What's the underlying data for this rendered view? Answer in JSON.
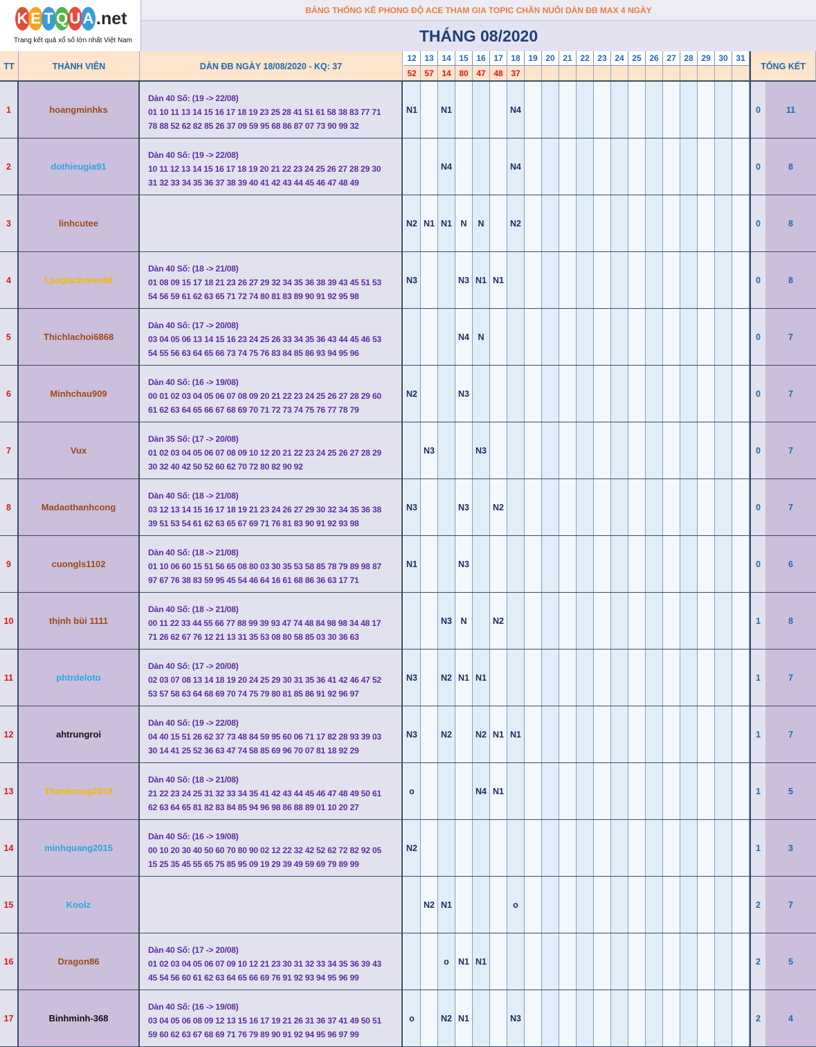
{
  "logo": {
    "letters": [
      "K",
      "E",
      "T",
      "Q",
      "U",
      "A"
    ],
    "suffix": ".net",
    "tagline": "Trang kết quả xổ số lớn nhất Việt Nam",
    "colors": [
      "#e84a3c",
      "#f7a21b",
      "#3b9ad9",
      "#4fb748",
      "#e84a3c",
      "#3b9ad9"
    ]
  },
  "title": "BẢNG THỐNG KÊ PHONG ĐỘ ACE THAM GIA TOPIC CHĂN NUÔI DÀN ĐB MAX 4 NGÀY",
  "month": "THÁNG 08/2020",
  "headers": {
    "tt": "TT",
    "member": "THÀNH VIÊN",
    "dan": "DÀN ĐB NGÀY 18/08/2020 - KQ: 37",
    "total": "TỔNG KẾT"
  },
  "days": [
    "12",
    "13",
    "14",
    "15",
    "16",
    "17",
    "18",
    "19",
    "20",
    "21",
    "22",
    "23",
    "24",
    "25",
    "26",
    "27",
    "28",
    "29",
    "30",
    "31"
  ],
  "results": [
    "52",
    "57",
    "14",
    "80",
    "47",
    "48",
    "37",
    "",
    "",
    "",
    "",
    "",
    "",
    "",
    "",
    "",
    "",
    "",
    "",
    ""
  ],
  "rows": [
    {
      "tt": "1",
      "name": "hoangminhks",
      "color": "#9c4a1a",
      "title": "Dàn 40 Số: (19 -> 22/08)",
      "line1": "01 10 11 13 14 15 16 17 18 19 23 25 28 41 51 61 58 38 83 77 71",
      "line2": "78 88 52 62 82 85 26 37 09 59 95 68 86 87 07 73 90 99 32",
      "marks": [
        "N1",
        "",
        "N1",
        "",
        "",
        "",
        "N4"
      ],
      "lose": "0",
      "total": "11"
    },
    {
      "tt": "2",
      "name": "dothieugia91",
      "color": "#2ea6e0",
      "title": "Dàn 40 Số: (19 -> 22/08)",
      "line1": "10 11 12 13 14 15 16 17 18 19 20 21 22 23 24 25 26 27 28 29 30",
      "line2": "31 32 33 34 35 36 37 38 39 40 41 42 43 44 45 46 47 48 49",
      "marks": [
        "",
        "",
        "N4",
        "",
        "",
        "",
        "N4"
      ],
      "lose": "0",
      "total": "8"
    },
    {
      "tt": "3",
      "name": "linhcutee",
      "color": "#9c4a1a",
      "title": "",
      "line1": "",
      "line2": "",
      "marks": [
        "N2",
        "N1",
        "N1",
        "N",
        "N",
        "",
        "N2"
      ],
      "lose": "0",
      "total": "8"
    },
    {
      "tt": "4",
      "name": "Laogiachoiso68",
      "color": "#f5b800",
      "title": "Dàn 40 Số: (18 -> 21/08)",
      "line1": "01 08 09 15 17 18 21 23 26 27 29 32 34 35 36 38 39 43 45 51 53",
      "line2": "54 56 59 61 62 63 65 71 72 74 80 81 83 89 90 91 92 95 98",
      "marks": [
        "N3",
        "",
        "",
        "N3",
        "N1",
        "N1",
        ""
      ],
      "lose": "0",
      "total": "8"
    },
    {
      "tt": "5",
      "name": "Thichlachoi6868",
      "color": "#9c4a1a",
      "title": "Dàn 40 Số: (17 -> 20/08)",
      "line1": "03 04 05 06 13 14 15 16 23 24 25 26 33 34 35 36 43 44 45 46 53",
      "line2": "54 55 56 63 64 65 66 73 74 75 76 83 84 85 86 93 94 95 96",
      "marks": [
        "",
        "",
        "",
        "N4",
        "N",
        "",
        ""
      ],
      "lose": "0",
      "total": "7"
    },
    {
      "tt": "6",
      "name": "Minhchau909",
      "color": "#9c4a1a",
      "title": "Dàn 40 Số: (16 -> 19/08)",
      "line1": "00 01 02 03 04 05 06 07 08 09 20 21 22 23 24 25 26 27 28 29 60",
      "line2": "61 62 63 64 65 66 67 68 69 70 71 72 73 74 75 76 77 78 79",
      "marks": [
        "N2",
        "",
        "",
        "N3",
        "",
        "",
        ""
      ],
      "lose": "0",
      "total": "7"
    },
    {
      "tt": "7",
      "name": "Vux",
      "color": "#9c4a1a",
      "title": "Dàn 35 Số: (17 -> 20/08)",
      "line1": "01 02 03 04 05 06 07 08 09 10 12 20 21 22 23 24 25 26 27 28 29",
      "line2": "30 32 40 42 50 52 60 62 70 72 80 82 90 92",
      "marks": [
        "",
        "N3",
        "",
        "",
        "N3",
        "",
        ""
      ],
      "lose": "0",
      "total": "7"
    },
    {
      "tt": "8",
      "name": "Madaothanhcong",
      "color": "#9c4a1a",
      "title": "Dàn 40 Số: (18 -> 21/08)",
      "line1": "03 12 13 14 15 16 17 18 19 21 23 24 26 27 29 30 32 34 35 36 38",
      "line2": "39 51 53 54 61 62 63 65 67 69 71 76 81 83 90 91 92 93 98",
      "marks": [
        "N3",
        "",
        "",
        "N3",
        "",
        "N2",
        ""
      ],
      "lose": "0",
      "total": "7"
    },
    {
      "tt": "9",
      "name": "cuongls1102",
      "color": "#9c4a1a",
      "title": "Dàn 40 Số: (18 -> 21/08)",
      "line1": "01 10 06 60 15 51 56 65 08 80 03 30 35 53 58 85 78 79 89 98 87",
      "line2": "97 67 76 38 83 59 95 45 54 46 64 16 61 68 86 36 63 17 71",
      "marks": [
        "N1",
        "",
        "",
        "N3",
        "",
        "",
        ""
      ],
      "lose": "0",
      "total": "6"
    },
    {
      "tt": "10",
      "name": "thịnh bùi 1111",
      "color": "#9c4a1a",
      "title": "Dàn 40 Số: (18 -> 21/08)",
      "line1": "00 11 22 33 44 55 66 77 88 99 39 93 47 74 48 84 98 98 34 48 17",
      "line2": "71 26 62 67 76 12 21 13 31 35 53 08 80 58 85 03 30 36 63",
      "marks": [
        "",
        "",
        "N3",
        "N",
        "",
        "N2",
        ""
      ],
      "lose": "1",
      "total": "8"
    },
    {
      "tt": "11",
      "name": "phtrdeloto",
      "color": "#2ea6e0",
      "title": "Dàn 40 Số: (17 -> 20/08)",
      "line1": "02 03 07 08 13 14 18 19 20 24 25 29 30 31 35 36 41 42 46 47 52",
      "line2": "53 57 58 63 64 68 69 70 74 75 79 80 81 85 86 91 92 96 97",
      "marks": [
        "N3",
        "",
        "N2",
        "N1",
        "N1",
        "",
        ""
      ],
      "lose": "1",
      "total": "7"
    },
    {
      "tt": "12",
      "name": "ahtrungroi",
      "color": "#111111",
      "title": "Dàn 40 Số: (19 -> 22/08)",
      "line1": "04 40 15 51 26 62 37 73 48 84 59 95 60 06 71 17 82 28 93 39 03",
      "line2": "30 14 41 25 52 36 63 47 74 58 85 69 96 70 07 81 18 92 29",
      "marks": [
        "N3",
        "",
        "N2",
        "",
        "N2",
        "N1",
        "N1"
      ],
      "lose": "1",
      "total": "7"
    },
    {
      "tt": "13",
      "name": "Thanhcong2018",
      "color": "#f5b800",
      "title": "Dàn 40 Số: (18 -> 21/08)",
      "line1": "21 22 23 24 25 31 32 33 34 35 41 42 43 44 45 46 47 48 49 50 61",
      "line2": "62 63 64 65 81 82 83 84 85 94 96 98 86 88 89 01 10 20 27",
      "marks": [
        "o",
        "",
        "",
        "",
        "N4",
        "N1",
        ""
      ],
      "lose": "1",
      "total": "5"
    },
    {
      "tt": "14",
      "name": "minhquang2015",
      "color": "#2ea6e0",
      "title": "Dàn 40 Số: (16 -> 19/08)",
      "line1": "00 10 20 30 40 50 60 70 80 90 02 12 22 32 42 52 62 72 82 92 05",
      "line2": "15 25 35 45 55 65 75 85 95 09 19 29 39 49 59 69 79 89 99",
      "marks": [
        "N2",
        "",
        "",
        "",
        "",
        "",
        ""
      ],
      "lose": "1",
      "total": "3"
    },
    {
      "tt": "15",
      "name": "Koolz",
      "color": "#2ea6e0",
      "title": "",
      "line1": "",
      "line2": "",
      "marks": [
        "",
        "N2",
        "N1",
        "",
        "",
        "",
        "o"
      ],
      "lose": "2",
      "total": "7"
    },
    {
      "tt": "16",
      "name": "Dragon86",
      "color": "#9c4a1a",
      "title": "Dàn 40 Số: (17 -> 20/08)",
      "line1": "01 02 03 04 05 06 07 09 10 12 21 23 30 31 32 33 34 35 36 39 43",
      "line2": "45 54 56 60 61 62 63 64 65 66 69 76 91 92 93 94 95 96 99",
      "marks": [
        "",
        "",
        "o",
        "N1",
        "N1",
        "",
        ""
      ],
      "lose": "2",
      "total": "5"
    },
    {
      "tt": "17",
      "name": "Binhminh-368",
      "color": "#111111",
      "title": "Dàn 40 Số: (16 -> 19/08)",
      "line1": "03 04 05 06 08 09 12 13 15 16 17 19 21 26 31 36 37 41 49 50 51",
      "line2": "59 60 62 63 67 68 69 71 76 79 89 90 91 92 94 95 96 97 99",
      "marks": [
        "o",
        "",
        "N2",
        "N1",
        "",
        "",
        "N3"
      ],
      "lose": "2",
      "total": "4"
    }
  ]
}
